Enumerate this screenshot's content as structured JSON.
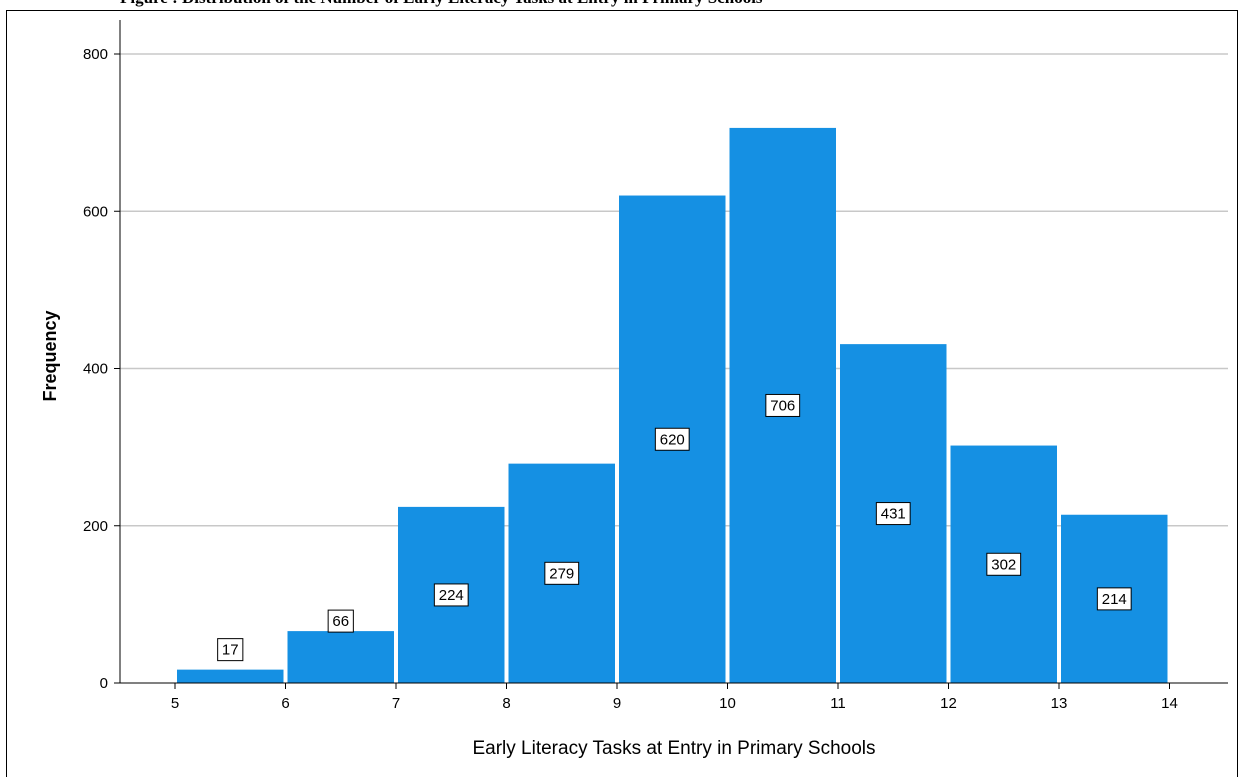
{
  "figure_caption": "Figure : Distribution of the Number of Early Literacy Tasks at Entry in Primary Schools",
  "chart_data": {
    "type": "bar",
    "bins": [
      {
        "x0": 5,
        "x1": 6,
        "value": 17
      },
      {
        "x0": 6,
        "x1": 7,
        "value": 66
      },
      {
        "x0": 7,
        "x1": 8,
        "value": 224
      },
      {
        "x0": 8,
        "x1": 9,
        "value": 279
      },
      {
        "x0": 9,
        "x1": 10,
        "value": 620
      },
      {
        "x0": 10,
        "x1": 11,
        "value": 706
      },
      {
        "x0": 11,
        "x1": 12,
        "value": 431
      },
      {
        "x0": 12,
        "x1": 13,
        "value": 302
      },
      {
        "x0": 13,
        "x1": 14,
        "value": 214
      }
    ],
    "xticks": [
      "5",
      "6",
      "7",
      "8",
      "9",
      "10",
      "11",
      "12",
      "13",
      "14"
    ],
    "yticks": [
      "0",
      "200",
      "400",
      "600",
      "800"
    ],
    "xlim": [
      5,
      14
    ],
    "ylim": [
      0,
      800
    ],
    "xlabel": "Early Literacy Tasks at Entry in Primary Schools",
    "ylabel": "Frequency",
    "bar_color": "#1590e3",
    "grid": "horizontal",
    "data_labels": true
  }
}
